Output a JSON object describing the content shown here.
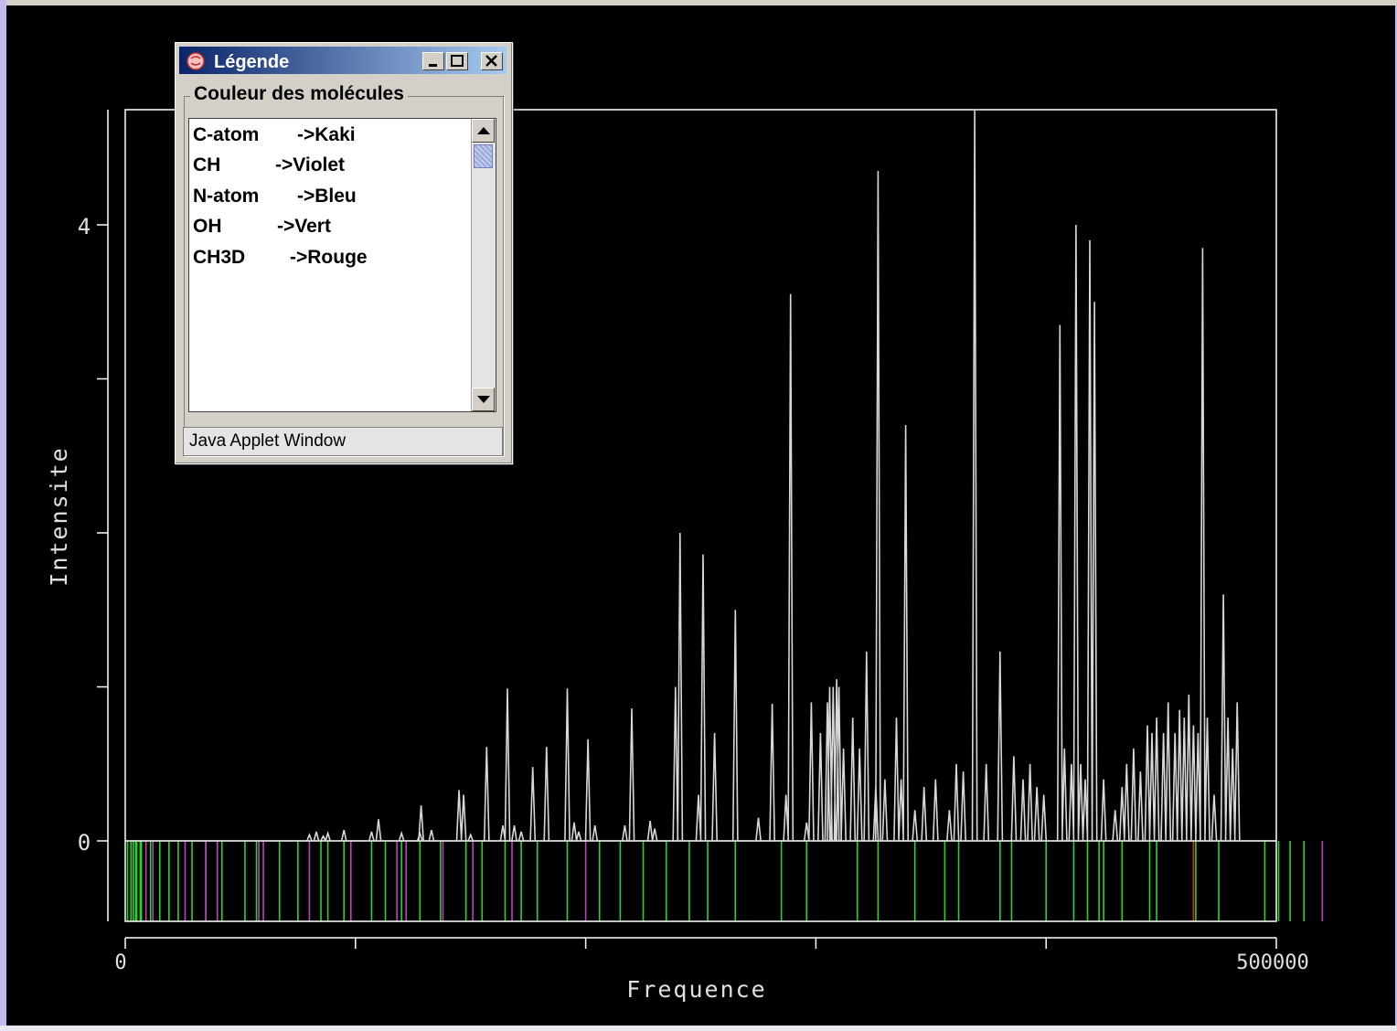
{
  "colors": {
    "background": "#000000",
    "frame": "#ffffff",
    "spectrum": "#d8d8d8",
    "Kaki": "#9aa040",
    "Violet": "#c040c0",
    "Bleu": "#4060ff",
    "Vert": "#30d030",
    "Rouge": "#e03020"
  },
  "chart_data": {
    "type": "line",
    "title": "",
    "xlabel": "Frequence",
    "ylabel": "Intensite",
    "xlim": [
      0,
      500000
    ],
    "ylim": [
      -0.52,
      4.75
    ],
    "x_tick_labels": [
      "0",
      "500000"
    ],
    "x_ticks": [
      0,
      100000,
      200000,
      300000,
      400000,
      500000
    ],
    "y_tick_labels": [
      "0",
      "4"
    ],
    "y_ticks": [
      0,
      1,
      2,
      3,
      4
    ],
    "grid": false,
    "legend": "separate window (Légende)",
    "series": [
      {
        "peaks": [
          [
            80000,
            0.04
          ],
          [
            83000,
            0.06
          ],
          [
            86000,
            0.03
          ],
          [
            88000,
            0.05
          ],
          [
            95000,
            0.07
          ],
          [
            107000,
            0.06
          ],
          [
            110000,
            0.14
          ],
          [
            120000,
            0.05
          ],
          [
            128000,
            0.05
          ],
          [
            128500,
            0.23
          ],
          [
            133000,
            0.07
          ],
          [
            145000,
            0.33
          ],
          [
            147000,
            0.3
          ],
          [
            150000,
            0.04
          ],
          [
            157000,
            0.61
          ],
          [
            164000,
            0.1
          ],
          [
            166000,
            0.99
          ],
          [
            169000,
            0.1
          ],
          [
            172000,
            0.06
          ],
          [
            177000,
            0.48
          ],
          [
            183000,
            0.61
          ],
          [
            192000,
            0.99
          ],
          [
            195000,
            0.12
          ],
          [
            197000,
            0.06
          ],
          [
            201000,
            0.66
          ],
          [
            204000,
            0.1
          ],
          [
            217000,
            0.1
          ],
          [
            220000,
            0.86
          ],
          [
            228000,
            0.13
          ],
          [
            230000,
            0.08
          ],
          [
            239000,
            1.0
          ],
          [
            241000,
            2.0
          ],
          [
            249000,
            0.3
          ],
          [
            251000,
            1.86
          ],
          [
            256000,
            0.7
          ],
          [
            265000,
            1.5
          ],
          [
            275000,
            0.15
          ],
          [
            281000,
            0.89
          ],
          [
            287000,
            0.3
          ],
          [
            289000,
            3.55
          ],
          [
            296000,
            0.12
          ],
          [
            298000,
            0.9
          ],
          [
            302000,
            0.7
          ],
          [
            305000,
            0.9
          ],
          [
            306000,
            1.0
          ],
          [
            307500,
            1.0
          ],
          [
            309000,
            1.05
          ],
          [
            310000,
            1.0
          ],
          [
            312000,
            0.6
          ],
          [
            316000,
            0.8
          ],
          [
            319000,
            0.6
          ],
          [
            322000,
            1.23
          ],
          [
            326000,
            0.35
          ],
          [
            327000,
            4.35
          ],
          [
            330000,
            0.4
          ],
          [
            335000,
            0.8
          ],
          [
            337000,
            0.4
          ],
          [
            339000,
            2.7
          ],
          [
            343000,
            0.2
          ],
          [
            347000,
            0.35
          ],
          [
            352000,
            0.4
          ],
          [
            358000,
            0.2
          ],
          [
            361000,
            0.5
          ],
          [
            364000,
            0.45
          ],
          [
            369000,
            4.75
          ],
          [
            374000,
            0.5
          ],
          [
            380000,
            1.23
          ],
          [
            386000,
            0.55
          ],
          [
            390000,
            0.4
          ],
          [
            393000,
            0.5
          ],
          [
            396000,
            0.35
          ],
          [
            399000,
            0.3
          ],
          [
            406000,
            3.35
          ],
          [
            408000,
            0.6
          ],
          [
            411000,
            0.5
          ],
          [
            413000,
            4.0
          ],
          [
            415000,
            0.5
          ],
          [
            417000,
            0.4
          ],
          [
            419000,
            3.9
          ],
          [
            421000,
            3.5
          ],
          [
            425000,
            0.4
          ],
          [
            430000,
            0.2
          ],
          [
            433000,
            0.35
          ],
          [
            435000,
            0.5
          ],
          [
            438000,
            0.6
          ],
          [
            441000,
            0.45
          ],
          [
            444000,
            0.75
          ],
          [
            446000,
            0.7
          ],
          [
            448000,
            0.8
          ],
          [
            451000,
            0.7
          ],
          [
            453000,
            0.9
          ],
          [
            456000,
            0.7
          ],
          [
            458000,
            0.85
          ],
          [
            460000,
            0.8
          ],
          [
            462000,
            0.95
          ],
          [
            464000,
            0.75
          ],
          [
            466000,
            0.7
          ],
          [
            468000,
            3.85
          ],
          [
            470000,
            0.8
          ],
          [
            473000,
            0.3
          ],
          [
            477000,
            1.6
          ],
          [
            479000,
            0.8
          ],
          [
            481000,
            0.6
          ],
          [
            483000,
            0.9
          ]
        ]
      }
    ],
    "molecule_lines": [
      {
        "molecule": "OH",
        "color": "Vert",
        "x": [
          1000,
          2500,
          3500,
          4500,
          5000,
          6500,
          7000,
          11000,
          15000,
          19000,
          23000,
          29000,
          35000,
          42000,
          52000,
          57000,
          67000,
          75000,
          85000,
          88000,
          95000,
          107000,
          113000,
          120000,
          128000,
          137000,
          148000,
          155000,
          165000,
          172000,
          179000,
          192000,
          206000,
          215000,
          225000,
          235000,
          245000,
          253000,
          265000,
          285000,
          296000,
          318000,
          327000,
          343000,
          356000,
          362000,
          380000,
          385000,
          400000,
          412000,
          418000,
          423000,
          425000,
          433000,
          445000,
          448000,
          465000,
          475000,
          495000,
          501000,
          506000,
          512000
        ]
      },
      {
        "molecule": "CH",
        "color": "Violet",
        "x": [
          9000,
          12000,
          26000,
          35000,
          40000,
          58000,
          60000,
          80000,
          98000,
          118000,
          122000,
          138000,
          151000,
          168000,
          200000,
          520000
        ]
      },
      {
        "molecule": "CH3D",
        "color": "Rouge",
        "x": [
          464000
        ]
      }
    ]
  },
  "legend_window": {
    "title": "Légende",
    "group_label": "Couleur des molécules",
    "items": [
      {
        "name": "C-atom",
        "color": "->Kaki"
      },
      {
        "name": "CH",
        "color": "->Violet"
      },
      {
        "name": "N-atom",
        "color": "->Bleu"
      },
      {
        "name": "OH",
        "color": "->Vert"
      },
      {
        "name": "CH3D",
        "color": "->Rouge"
      }
    ],
    "status": "Java Applet Window",
    "icons": [
      "java-app-icon",
      "minimize-icon",
      "maximize-icon",
      "close-icon",
      "scroll-up-icon",
      "scroll-down-icon"
    ]
  }
}
